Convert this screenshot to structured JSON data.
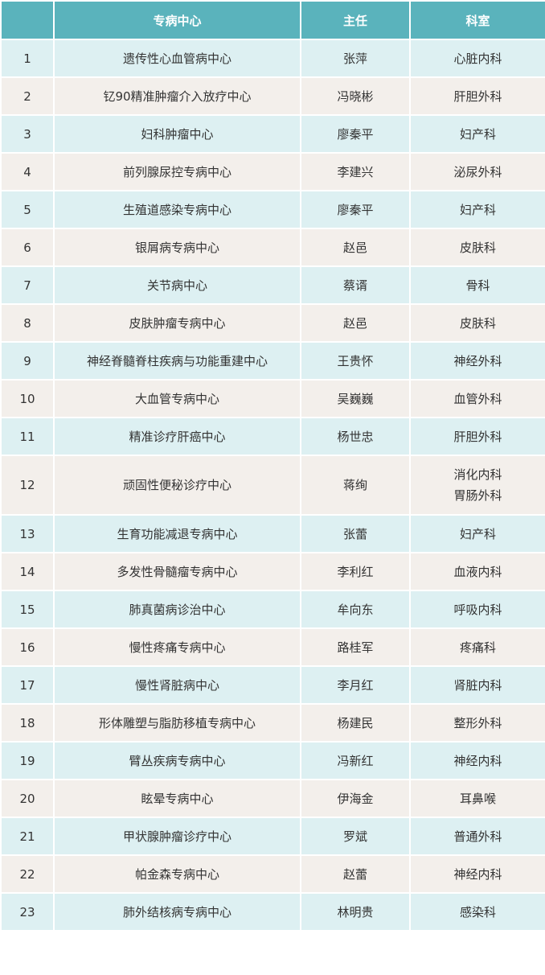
{
  "table": {
    "headers": [
      "",
      "专病中心",
      "主任",
      "科室"
    ],
    "rows": [
      {
        "no": "1",
        "center": "遗传性心血管病中心",
        "director": "张萍",
        "dept": [
          "心脏内科"
        ]
      },
      {
        "no": "2",
        "center": "钇90精准肿瘤介入放疗中心",
        "director": "冯晓彬",
        "dept": [
          "肝胆外科"
        ]
      },
      {
        "no": "3",
        "center": "妇科肿瘤中心",
        "director": "廖秦平",
        "dept": [
          "妇产科"
        ]
      },
      {
        "no": "4",
        "center": "前列腺尿控专病中心",
        "director": "李建兴",
        "dept": [
          "泌尿外科"
        ]
      },
      {
        "no": "5",
        "center": "生殖道感染专病中心",
        "director": "廖秦平",
        "dept": [
          "妇产科"
        ]
      },
      {
        "no": "6",
        "center": "银屑病专病中心",
        "director": "赵邑",
        "dept": [
          "皮肤科"
        ]
      },
      {
        "no": "7",
        "center": "关节病中心",
        "director": "蔡谞",
        "dept": [
          "骨科"
        ]
      },
      {
        "no": "8",
        "center": "皮肤肿瘤专病中心",
        "director": "赵邑",
        "dept": [
          "皮肤科"
        ]
      },
      {
        "no": "9",
        "center": "神经脊髓脊柱疾病与功能重建中心",
        "director": "王贵怀",
        "dept": [
          "神经外科"
        ]
      },
      {
        "no": "10",
        "center": "大血管专病中心",
        "director": "吴巍巍",
        "dept": [
          "血管外科"
        ]
      },
      {
        "no": "11",
        "center": "精准诊疗肝癌中心",
        "director": "杨世忠",
        "dept": [
          "肝胆外科"
        ]
      },
      {
        "no": "12",
        "center": "顽固性便秘诊疗中心",
        "director": "蒋绚",
        "dept": [
          "消化内科",
          "胃肠外科"
        ]
      },
      {
        "no": "13",
        "center": "生育功能减退专病中心",
        "director": "张蕾",
        "dept": [
          "妇产科"
        ]
      },
      {
        "no": "14",
        "center": "多发性骨髓瘤专病中心",
        "director": "李利红",
        "dept": [
          "血液内科"
        ]
      },
      {
        "no": "15",
        "center": "肺真菌病诊治中心",
        "director": "牟向东",
        "dept": [
          "呼吸内科"
        ]
      },
      {
        "no": "16",
        "center": "慢性疼痛专病中心",
        "director": "路桂军",
        "dept": [
          "疼痛科"
        ]
      },
      {
        "no": "17",
        "center": "慢性肾脏病中心",
        "director": "李月红",
        "dept": [
          "肾脏内科"
        ]
      },
      {
        "no": "18",
        "center": "形体雕塑与脂肪移植专病中心",
        "director": "杨建民",
        "dept": [
          "整形外科"
        ]
      },
      {
        "no": "19",
        "center": "臂丛疾病专病中心",
        "director": "冯新红",
        "dept": [
          "神经内科"
        ]
      },
      {
        "no": "20",
        "center": "眩晕专病中心",
        "director": "伊海金",
        "dept": [
          "耳鼻喉"
        ]
      },
      {
        "no": "21",
        "center": "甲状腺肿瘤诊疗中心",
        "director": "罗斌",
        "dept": [
          "普通外科"
        ]
      },
      {
        "no": "22",
        "center": "帕金森专病中心",
        "director": "赵蕾",
        "dept": [
          "神经内科"
        ]
      },
      {
        "no": "23",
        "center": "肺外结核病专病中心",
        "director": "林明贵",
        "dept": [
          "感染科"
        ]
      }
    ]
  },
  "colors": {
    "header": "#5ab3bc",
    "row_odd": "#ddf0f2",
    "row_even": "#f3efeb"
  }
}
